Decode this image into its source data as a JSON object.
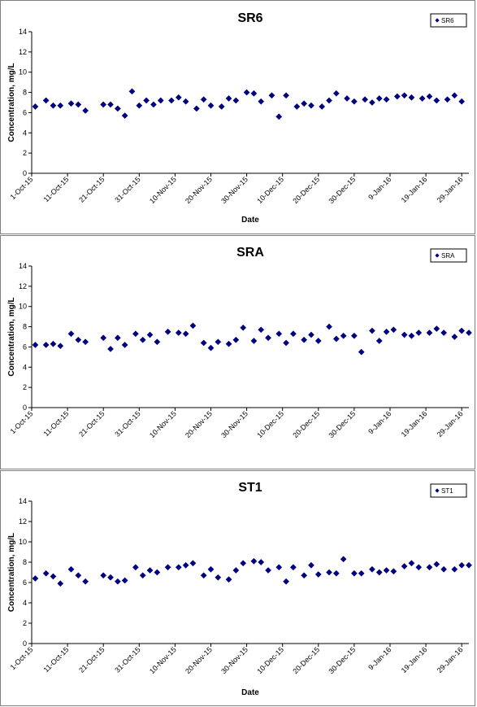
{
  "chart_data": [
    {
      "type": "scatter",
      "title": "SR6",
      "xlabel": "Date",
      "ylabel": "Concentration, mg/L",
      "ylim": [
        0,
        14
      ],
      "yticks": [
        0,
        2,
        4,
        6,
        8,
        10,
        12,
        14
      ],
      "xlim": [
        "2015-10-01",
        "2016-01-31"
      ],
      "xticks": [
        "1-Oct-15",
        "11-Oct-15",
        "21-Oct-15",
        "31-Oct-15",
        "10-Nov-15",
        "20-Nov-15",
        "30-Nov-15",
        "10-Dec-15",
        "20-Dec-15",
        "30-Dec-15",
        "9-Jan-16",
        "19-Jan-16",
        "29-Jan-16"
      ],
      "grid": false,
      "legend_position": "top-right",
      "color": "#000080",
      "series": [
        {
          "name": "SR6",
          "x": [
            "2015-10-02",
            "2015-10-05",
            "2015-10-07",
            "2015-10-09",
            "2015-10-12",
            "2015-10-14",
            "2015-10-16",
            "2015-10-21",
            "2015-10-23",
            "2015-10-25",
            "2015-10-27",
            "2015-10-29",
            "2015-10-31",
            "2015-11-02",
            "2015-11-04",
            "2015-11-06",
            "2015-11-09",
            "2015-11-11",
            "2015-11-13",
            "2015-11-16",
            "2015-11-18",
            "2015-11-20",
            "2015-11-23",
            "2015-11-25",
            "2015-11-27",
            "2015-11-30",
            "2015-12-02",
            "2015-12-04",
            "2015-12-07",
            "2015-12-09",
            "2015-12-11",
            "2015-12-14",
            "2015-12-16",
            "2015-12-18",
            "2015-12-21",
            "2015-12-23",
            "2015-12-25",
            "2015-12-28",
            "2015-12-30",
            "2016-01-02",
            "2016-01-04",
            "2016-01-06",
            "2016-01-08",
            "2016-01-11",
            "2016-01-13",
            "2016-01-15",
            "2016-01-18",
            "2016-01-20",
            "2016-01-22",
            "2016-01-25",
            "2016-01-27",
            "2016-01-29"
          ],
          "y": [
            6.6,
            7.2,
            6.7,
            6.7,
            6.9,
            6.8,
            6.2,
            6.8,
            6.8,
            6.4,
            5.7,
            8.1,
            6.7,
            7.2,
            6.8,
            7.2,
            7.2,
            7.5,
            7.1,
            6.4,
            7.3,
            6.7,
            6.6,
            7.4,
            7.2,
            8.0,
            7.9,
            7.1,
            7.7,
            5.6,
            7.7,
            6.6,
            6.9,
            6.7,
            6.6,
            7.2,
            7.9,
            7.4,
            7.1,
            7.3,
            7.0,
            7.4,
            7.3,
            7.6,
            7.7,
            7.5,
            7.4,
            7.6,
            7.2,
            7.3,
            7.7,
            7.1
          ]
        }
      ]
    },
    {
      "type": "scatter",
      "title": "SRA",
      "xlabel": "",
      "ylabel": "Concentration, mg/L",
      "ylim": [
        0,
        14
      ],
      "yticks": [
        0,
        2,
        4,
        6,
        8,
        10,
        12,
        14
      ],
      "xlim": [
        "2015-10-01",
        "2016-01-31"
      ],
      "xticks": [
        "1-Oct-15",
        "11-Oct-15",
        "21-Oct-15",
        "31-Oct-15",
        "10-Nov-15",
        "20-Nov-15",
        "30-Nov-15",
        "10-Dec-15",
        "20-Dec-15",
        "30-Dec-15",
        "9-Jan-16",
        "19-Jan-16",
        "29-Jan-16"
      ],
      "grid": false,
      "legend_position": "top-right",
      "color": "#000080",
      "series": [
        {
          "name": "SRA",
          "x": [
            "2015-10-02",
            "2015-10-05",
            "2015-10-07",
            "2015-10-09",
            "2015-10-12",
            "2015-10-14",
            "2015-10-16",
            "2015-10-21",
            "2015-10-23",
            "2015-10-25",
            "2015-10-27",
            "2015-10-30",
            "2015-11-01",
            "2015-11-03",
            "2015-11-05",
            "2015-11-08",
            "2015-11-11",
            "2015-11-13",
            "2015-11-15",
            "2015-11-18",
            "2015-11-20",
            "2015-11-22",
            "2015-11-25",
            "2015-11-27",
            "2015-11-29",
            "2015-12-02",
            "2015-12-04",
            "2015-12-06",
            "2015-12-09",
            "2015-12-11",
            "2015-12-13",
            "2015-12-16",
            "2015-12-18",
            "2015-12-20",
            "2015-12-23",
            "2015-12-25",
            "2015-12-27",
            "2015-12-30",
            "2016-01-01",
            "2016-01-04",
            "2016-01-06",
            "2016-01-08",
            "2016-01-10",
            "2016-01-13",
            "2016-01-15",
            "2016-01-17",
            "2016-01-20",
            "2016-01-22",
            "2016-01-24",
            "2016-01-27",
            "2016-01-29",
            "2016-01-31"
          ],
          "y": [
            6.2,
            6.2,
            6.3,
            6.1,
            7.3,
            6.7,
            6.5,
            6.9,
            5.8,
            6.9,
            6.2,
            7.3,
            6.7,
            7.2,
            6.5,
            7.5,
            7.4,
            7.3,
            8.1,
            6.4,
            5.9,
            6.5,
            6.3,
            6.7,
            7.9,
            6.6,
            7.7,
            6.9,
            7.3,
            6.4,
            7.3,
            6.7,
            7.2,
            6.6,
            8.0,
            6.8,
            7.1,
            7.1,
            5.5,
            7.6,
            6.6,
            7.5,
            7.7,
            7.2,
            7.1,
            7.4,
            7.4,
            7.8,
            7.4,
            7.0,
            7.6,
            7.4
          ]
        }
      ]
    },
    {
      "type": "scatter",
      "title": "ST1",
      "xlabel": "Date",
      "ylabel": "Concentration, mg/L",
      "ylim": [
        0,
        14
      ],
      "yticks": [
        0,
        2,
        4,
        6,
        8,
        10,
        12,
        14
      ],
      "xlim": [
        "2015-10-01",
        "2016-01-31"
      ],
      "xticks": [
        "1-Oct-15",
        "11-Oct-15",
        "21-Oct-15",
        "31-Oct-15",
        "10-Nov-15",
        "20-Nov-15",
        "30-Nov-15",
        "10-Dec-15",
        "20-Dec-15",
        "30-Dec-15",
        "9-Jan-16",
        "19-Jan-16",
        "29-Jan-16"
      ],
      "grid": false,
      "legend_position": "top-right",
      "color": "#000080",
      "series": [
        {
          "name": "ST1",
          "x": [
            "2015-10-02",
            "2015-10-05",
            "2015-10-07",
            "2015-10-09",
            "2015-10-12",
            "2015-10-14",
            "2015-10-16",
            "2015-10-21",
            "2015-10-23",
            "2015-10-25",
            "2015-10-27",
            "2015-10-30",
            "2015-11-01",
            "2015-11-03",
            "2015-11-05",
            "2015-11-08",
            "2015-11-11",
            "2015-11-13",
            "2015-11-15",
            "2015-11-18",
            "2015-11-20",
            "2015-11-22",
            "2015-11-25",
            "2015-11-27",
            "2015-11-29",
            "2015-12-02",
            "2015-12-04",
            "2015-12-06",
            "2015-12-09",
            "2015-12-11",
            "2015-12-13",
            "2015-12-16",
            "2015-12-18",
            "2015-12-20",
            "2015-12-23",
            "2015-12-25",
            "2015-12-27",
            "2015-12-30",
            "2016-01-01",
            "2016-01-04",
            "2016-01-06",
            "2016-01-08",
            "2016-01-10",
            "2016-01-13",
            "2016-01-15",
            "2016-01-17",
            "2016-01-20",
            "2016-01-22",
            "2016-01-24",
            "2016-01-27",
            "2016-01-29",
            "2016-01-31"
          ],
          "y": [
            6.4,
            6.9,
            6.6,
            5.9,
            7.3,
            6.7,
            6.1,
            6.7,
            6.5,
            6.1,
            6.2,
            7.5,
            6.7,
            7.2,
            7.0,
            7.5,
            7.5,
            7.7,
            7.9,
            6.7,
            7.3,
            6.5,
            6.3,
            7.2,
            7.9,
            8.1,
            8.0,
            7.2,
            7.5,
            6.1,
            7.5,
            6.7,
            7.7,
            6.8,
            7.0,
            6.9,
            8.3,
            6.9,
            6.9,
            7.3,
            7.0,
            7.2,
            7.1,
            7.6,
            7.9,
            7.5,
            7.5,
            7.8,
            7.3,
            7.3,
            7.7,
            7.7
          ]
        }
      ]
    }
  ]
}
